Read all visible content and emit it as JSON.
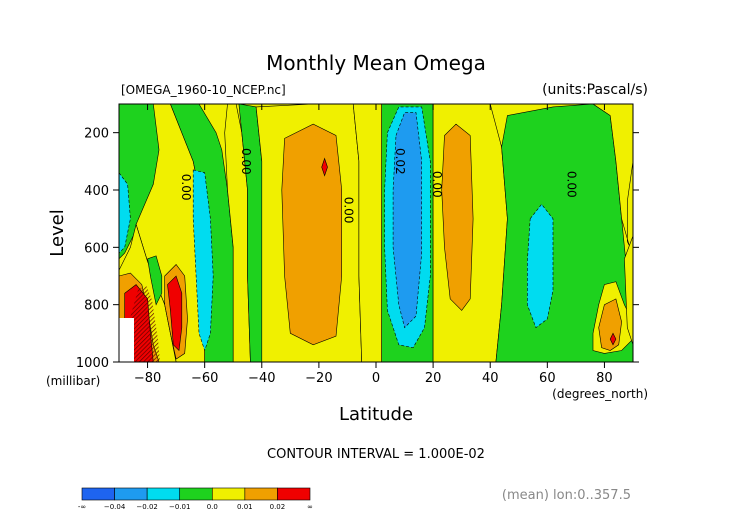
{
  "chart_data": {
    "type": "heatmap",
    "title": "Monthly Mean Omega",
    "file_label": "[OMEGA_1960-10_NCEP.nc]",
    "units_label": "(units:Pascal/s)",
    "xlabel": "Latitude",
    "x_unit_label": "(degrees_north)",
    "ylabel": "Level",
    "y_unit_label": "(millibar)",
    "xlim": [
      -90,
      90
    ],
    "ylim": [
      1000,
      100
    ],
    "x_ticks": [
      -80,
      -60,
      -40,
      -20,
      0,
      20,
      40,
      60,
      80
    ],
    "x_tick_labels": [
      "−80",
      "−60",
      "−40",
      "−20",
      "0",
      "20",
      "40",
      "60",
      "80"
    ],
    "y_ticks": [
      200,
      400,
      600,
      800,
      1000
    ],
    "y_tick_labels": [
      "200",
      "400",
      "600",
      "800",
      "1000"
    ],
    "contour_interval_text": "CONTOUR INTERVAL = 1.000E-02",
    "footer_note": "(mean) lon:0..357.5",
    "colorbar": {
      "colors": [
        "#1e64f0",
        "#1e9bf0",
        "#00dcf0",
        "#1ed21e",
        "#f0f000",
        "#f0a000",
        "#f00000"
      ],
      "labels": [
        "-∞",
        "−0.04",
        "−0.02",
        "−0.01",
        "0.0",
        "0.01",
        "0.02",
        "∞"
      ]
    },
    "contour_labels": [
      {
        "text": "0.00",
        "x": -68,
        "y": 390
      },
      {
        "text": "0.00",
        "x": -47,
        "y": 300
      },
      {
        "text": "0.00",
        "x": -11,
        "y": 470
      },
      {
        "text": "0.02",
        "x": 7,
        "y": 300
      },
      {
        "text": "0.00",
        "x": 20,
        "y": 380
      },
      {
        "text": "0.00",
        "x": 67,
        "y": 380
      }
    ],
    "regions": [
      {
        "level": 3,
        "points": [
          [
            -90,
            100
          ],
          [
            -76,
            100
          ],
          [
            -74,
            200
          ],
          [
            -77,
            350
          ],
          [
            -82,
            500
          ],
          [
            -88,
            620
          ],
          [
            -90,
            640
          ]
        ]
      },
      {
        "level": 2,
        "points": [
          [
            -90,
            340
          ],
          [
            -87,
            380
          ],
          [
            -86,
            500
          ],
          [
            -88,
            600
          ],
          [
            -90,
            620
          ]
        ]
      },
      {
        "level": 4,
        "points": [
          [
            -78,
            100
          ],
          [
            -72,
            100
          ],
          [
            -68,
            200
          ],
          [
            -64,
            300
          ],
          [
            -60,
            500
          ],
          [
            -60,
            700
          ],
          [
            -60,
            1000
          ],
          [
            -70,
            1000
          ],
          [
            -74,
            800
          ],
          [
            -80,
            650
          ],
          [
            -84,
            520
          ],
          [
            -78,
            380
          ],
          [
            -76,
            260
          ]
        ]
      },
      {
        "level": 3,
        "points": [
          [
            -72,
            100
          ],
          [
            -62,
            100
          ],
          [
            -56,
            200
          ],
          [
            -54,
            260
          ],
          [
            -52,
            400
          ],
          [
            -50,
            600
          ],
          [
            -50,
            1000
          ],
          [
            -60,
            1000
          ],
          [
            -60,
            500
          ],
          [
            -64,
            300
          ],
          [
            -68,
            200
          ]
        ]
      },
      {
        "level": 2,
        "points": [
          [
            -64,
            330
          ],
          [
            -60,
            340
          ],
          [
            -58,
            500
          ],
          [
            -57,
            700
          ],
          [
            -58,
            900
          ],
          [
            -60,
            960
          ],
          [
            -62,
            900
          ],
          [
            -63,
            700
          ],
          [
            -64,
            500
          ]
        ]
      },
      {
        "level": 4,
        "points": [
          [
            -52,
            100
          ],
          [
            -49,
            100
          ],
          [
            -47,
            200
          ],
          [
            -45,
            400
          ],
          [
            -45,
            700
          ],
          [
            -44,
            1000
          ],
          [
            -50,
            1000
          ],
          [
            -50,
            600
          ],
          [
            -52,
            400
          ],
          [
            -53,
            200
          ]
        ]
      },
      {
        "level": 3,
        "points": [
          [
            -48,
            100
          ],
          [
            -42,
            110
          ],
          [
            -40,
            300
          ],
          [
            -40,
            700
          ],
          [
            -40,
            1000
          ],
          [
            -44,
            1000
          ],
          [
            -45,
            700
          ],
          [
            -45,
            400
          ],
          [
            -47,
            200
          ]
        ]
      },
      {
        "level": 4,
        "points": [
          [
            -42,
            110
          ],
          [
            -22,
            100
          ],
          [
            -8,
            100
          ],
          [
            -6,
            300
          ],
          [
            -6,
            700
          ],
          [
            -5,
            1000
          ],
          [
            -40,
            1000
          ],
          [
            -40,
            700
          ],
          [
            -40,
            300
          ]
        ]
      },
      {
        "level": 5,
        "points": [
          [
            -32,
            220
          ],
          [
            -22,
            170
          ],
          [
            -14,
            210
          ],
          [
            -12,
            400
          ],
          [
            -12,
            700
          ],
          [
            -14,
            910
          ],
          [
            -22,
            940
          ],
          [
            -30,
            900
          ],
          [
            -32,
            700
          ],
          [
            -33,
            400
          ]
        ]
      },
      {
        "level": 6,
        "points": [
          [
            -18,
            290
          ],
          [
            -17,
            320
          ],
          [
            -18,
            350
          ],
          [
            -19,
            320
          ]
        ]
      },
      {
        "level": 4,
        "points": [
          [
            -8,
            100
          ],
          [
            2,
            100
          ],
          [
            2,
            500
          ],
          [
            2,
            1000
          ],
          [
            -5,
            1000
          ],
          [
            -6,
            700
          ],
          [
            -6,
            300
          ]
        ]
      },
      {
        "level": 3,
        "points": [
          [
            2,
            100
          ],
          [
            20,
            100
          ],
          [
            20,
            300
          ],
          [
            20,
            700
          ],
          [
            20,
            1000
          ],
          [
            2,
            1000
          ],
          [
            2,
            500
          ]
        ]
      },
      {
        "level": 2,
        "points": [
          [
            4,
            200
          ],
          [
            8,
            110
          ],
          [
            16,
            110
          ],
          [
            19,
            300
          ],
          [
            19,
            700
          ],
          [
            17,
            880
          ],
          [
            13,
            950
          ],
          [
            8,
            940
          ],
          [
            4,
            820
          ],
          [
            3,
            600
          ],
          [
            3,
            400
          ]
        ]
      },
      {
        "level": 1,
        "points": [
          [
            7,
            210
          ],
          [
            10,
            130
          ],
          [
            14,
            130
          ],
          [
            16,
            300
          ],
          [
            16,
            620
          ],
          [
            14,
            840
          ],
          [
            10,
            880
          ],
          [
            8,
            800
          ],
          [
            6,
            600
          ],
          [
            6,
            400
          ]
        ]
      },
      {
        "level": 4,
        "points": [
          [
            20,
            100
          ],
          [
            40,
            100
          ],
          [
            44,
            250
          ],
          [
            46,
            500
          ],
          [
            44,
            800
          ],
          [
            42,
            1000
          ],
          [
            20,
            1000
          ],
          [
            20,
            700
          ],
          [
            20,
            300
          ]
        ]
      },
      {
        "level": 5,
        "points": [
          [
            24,
            210
          ],
          [
            28,
            170
          ],
          [
            33,
            210
          ],
          [
            34,
            500
          ],
          [
            33,
            780
          ],
          [
            30,
            820
          ],
          [
            26,
            780
          ],
          [
            24,
            600
          ],
          [
            23,
            400
          ]
        ]
      },
      {
        "level": 3,
        "points": [
          [
            46,
            140
          ],
          [
            62,
            110
          ],
          [
            76,
            100
          ],
          [
            82,
            140
          ],
          [
            84,
            300
          ],
          [
            86,
            500
          ],
          [
            88,
            700
          ],
          [
            90,
            800
          ],
          [
            90,
            1000
          ],
          [
            42,
            1000
          ],
          [
            44,
            800
          ],
          [
            46,
            500
          ],
          [
            44,
            250
          ]
        ]
      },
      {
        "level": 2,
        "points": [
          [
            54,
            500
          ],
          [
            58,
            450
          ],
          [
            62,
            500
          ],
          [
            62,
            750
          ],
          [
            60,
            850
          ],
          [
            56,
            880
          ],
          [
            53,
            800
          ],
          [
            53,
            650
          ]
        ]
      },
      {
        "level": 4,
        "points": [
          [
            76,
            100
          ],
          [
            90,
            100
          ],
          [
            90,
            300
          ],
          [
            88,
            440
          ],
          [
            88,
            580
          ],
          [
            90,
            620
          ],
          [
            90,
            640
          ],
          [
            86,
            500
          ],
          [
            84,
            300
          ],
          [
            82,
            140
          ]
        ]
      },
      {
        "level": 4,
        "points": [
          [
            76,
            900
          ],
          [
            78,
            800
          ],
          [
            80,
            730
          ],
          [
            84,
            720
          ],
          [
            87,
            800
          ],
          [
            90,
            860
          ],
          [
            90,
            920
          ],
          [
            86,
            960
          ],
          [
            80,
            970
          ],
          [
            76,
            960
          ]
        ]
      },
      {
        "level": 4,
        "points": [
          [
            87,
            640
          ],
          [
            90,
            560
          ],
          [
            90,
            940
          ],
          [
            88,
            880
          ]
        ]
      },
      {
        "level": 5,
        "points": [
          [
            78,
            880
          ],
          [
            80,
            800
          ],
          [
            84,
            780
          ],
          [
            86,
            860
          ],
          [
            85,
            940
          ],
          [
            82,
            960
          ],
          [
            79,
            950
          ]
        ]
      },
      {
        "level": 6,
        "points": [
          [
            83,
            900
          ],
          [
            84,
            920
          ],
          [
            83,
            940
          ],
          [
            82,
            920
          ]
        ]
      },
      {
        "level": 4,
        "points": [
          [
            -90,
            680
          ],
          [
            -86,
            600
          ],
          [
            -84,
            520
          ],
          [
            -80,
            650
          ],
          [
            -74,
            800
          ],
          [
            -70,
            1000
          ],
          [
            -90,
            1000
          ]
        ]
      },
      {
        "level": 5,
        "points": [
          [
            -90,
            700
          ],
          [
            -86,
            690
          ],
          [
            -82,
            730
          ],
          [
            -80,
            820
          ],
          [
            -78,
            940
          ],
          [
            -76,
            1000
          ],
          [
            -90,
            1000
          ]
        ]
      },
      {
        "level": 5,
        "points": [
          [
            -74,
            700
          ],
          [
            -70,
            660
          ],
          [
            -67,
            700
          ],
          [
            -66,
            850
          ],
          [
            -67,
            970
          ],
          [
            -70,
            990
          ],
          [
            -72,
            900
          ],
          [
            -74,
            800
          ]
        ]
      },
      {
        "level": 6,
        "points": [
          [
            -88,
            760
          ],
          [
            -84,
            730
          ],
          [
            -80,
            780
          ],
          [
            -79,
            900
          ],
          [
            -78,
            1000
          ],
          [
            -86,
            1000
          ],
          [
            -88,
            860
          ]
        ]
      },
      {
        "level": 6,
        "points": [
          [
            -73,
            730
          ],
          [
            -70,
            700
          ],
          [
            -68,
            760
          ],
          [
            -68,
            880
          ],
          [
            -69,
            960
          ],
          [
            -71,
            940
          ],
          [
            -72,
            820
          ]
        ]
      },
      {
        "level": 3,
        "points": [
          [
            -80,
            640
          ],
          [
            -77,
            630
          ],
          [
            -75,
            700
          ],
          [
            -75,
            760
          ],
          [
            -77,
            800
          ],
          [
            -79,
            700
          ]
        ]
      }
    ]
  }
}
